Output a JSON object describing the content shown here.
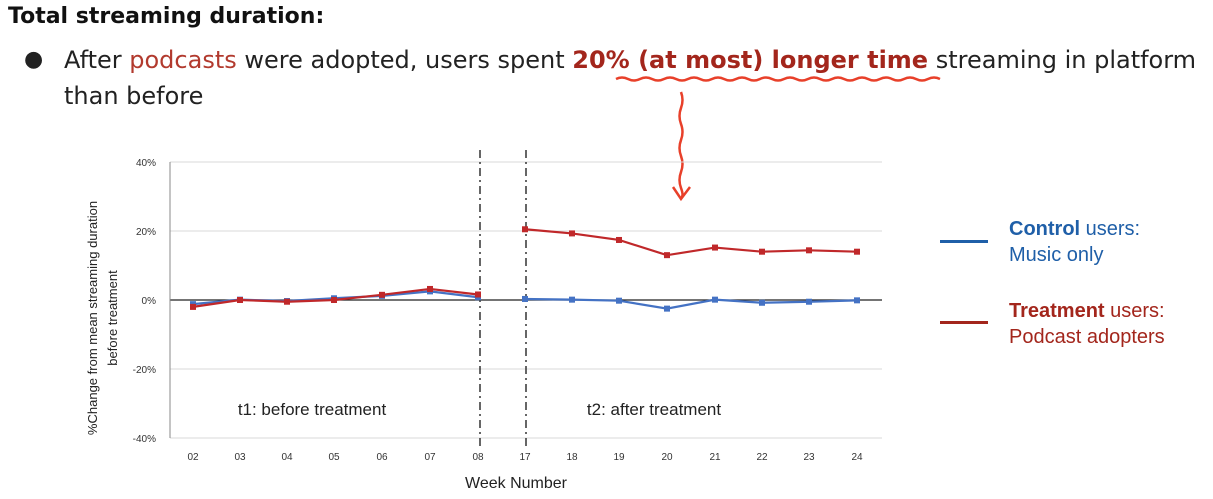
{
  "slide": {
    "heading": "Total streaming duration:",
    "bullet": {
      "symbol": "●",
      "text_before": "After ",
      "highlight_word": "podcasts",
      "text_middle": " were adopted, users spent ",
      "emphasis": "20% (at most) longer time",
      "text_after": " streaming in platform than before"
    }
  },
  "legend": {
    "control_bold": "Control",
    "control_rest": " users:",
    "control_line2": "Music only",
    "treatment_bold": "Treatment",
    "treatment_rest": " users:",
    "treatment_line2": "Podcast adopters"
  },
  "colors": {
    "control": "#4472c4",
    "control_legend": "#1f5fa8",
    "treatment": "#c0282a",
    "treatment_legend": "#a3261c",
    "annotation": "#e8402a"
  },
  "chart_data": {
    "type": "line",
    "xlabel": "Week Number",
    "ylabel": "%Change from mean streaming duration before treatment",
    "ylim": [
      -40,
      40
    ],
    "yticks": [
      "40%",
      "20%",
      "0%",
      "-20%",
      "-40%"
    ],
    "grid": true,
    "categories": [
      "02",
      "03",
      "04",
      "05",
      "06",
      "07",
      "08",
      "17",
      "18",
      "19",
      "20",
      "21",
      "22",
      "23",
      "24"
    ],
    "period_labels": [
      "t1: before treatment",
      "t2: after treatment"
    ],
    "series": [
      {
        "name": "Control users: Music only",
        "values": [
          -1.2,
          0.1,
          -0.3,
          0.5,
          1.2,
          2.5,
          0.8,
          0.3,
          0.1,
          -0.2,
          -2.5,
          0.1,
          -0.8,
          -0.5,
          -0.1
        ]
      },
      {
        "name": "Treatment users: Podcast adopters",
        "values": [
          -2.0,
          0.0,
          -0.5,
          0.0,
          1.5,
          3.2,
          1.6,
          20.5,
          19.3,
          17.4,
          13.0,
          15.2,
          14.0,
          14.4,
          14.0
        ]
      }
    ]
  }
}
